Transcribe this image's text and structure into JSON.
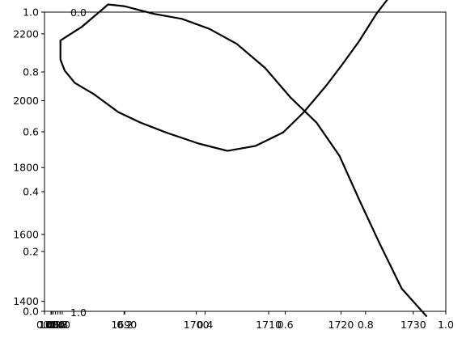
{
  "chart_data": {
    "type": "line",
    "title": "",
    "xlabel": "",
    "ylabel": "",
    "grid": false,
    "axes": [
      {
        "name": "unit-frame",
        "xlim": [
          0.0,
          1.0
        ],
        "ylim": [
          0.0,
          1.0
        ],
        "xticks": [
          "0.0",
          "0.2",
          "0.4",
          "0.6",
          "0.8",
          "1.0"
        ],
        "yticks": [
          "0.0",
          "0.2",
          "0.4",
          "0.6",
          "0.8",
          "1.0"
        ]
      },
      {
        "name": "rotated-frame",
        "xticks": [
          "0.0",
          "0.2",
          "0.4",
          "0.6",
          "0.8",
          "1.0"
        ],
        "yticks": [
          "0.0",
          "1.0"
        ]
      },
      {
        "name": "data-frame",
        "xlim": [
          1679,
          1734.5
        ],
        "ylim": [
          1370,
          2265
        ],
        "xticks": [
          "1680",
          "1690",
          "1700",
          "1710",
          "1720",
          "1730"
        ],
        "yticks": [
          "1400",
          "1600",
          "1800",
          "2000",
          "2200"
        ]
      }
    ],
    "series": [
      {
        "name": "",
        "color": "#000000",
        "x": [
          1731.8,
          1728.4,
          1725.3,
          1722.6,
          1719.8,
          1716.6,
          1713.0,
          1709.5,
          1705.6,
          1701.8,
          1698.0,
          1694.1,
          1690.0,
          1687.8,
          1684.1,
          1681.2,
          1681.2,
          1681.8,
          1683.2,
          1685.8,
          1689.2,
          1692.2,
          1695.8,
          1700.3,
          1704.3,
          1708.2,
          1712.0,
          1714.8,
          1718.0,
          1720.2,
          1722.5,
          1724.9,
          1727.4
        ],
        "y": [
          1356,
          1438,
          1575,
          1700,
          1835,
          1935,
          2010,
          2098,
          2170,
          2215,
          2245,
          2260,
          2283,
          2288,
          2220,
          2180,
          2123,
          2090,
          2053,
          2020,
          1966,
          1935,
          1905,
          1872,
          1850,
          1865,
          1905,
          1964,
          2046,
          2109,
          2178,
          2260,
          2330
        ]
      }
    ]
  }
}
